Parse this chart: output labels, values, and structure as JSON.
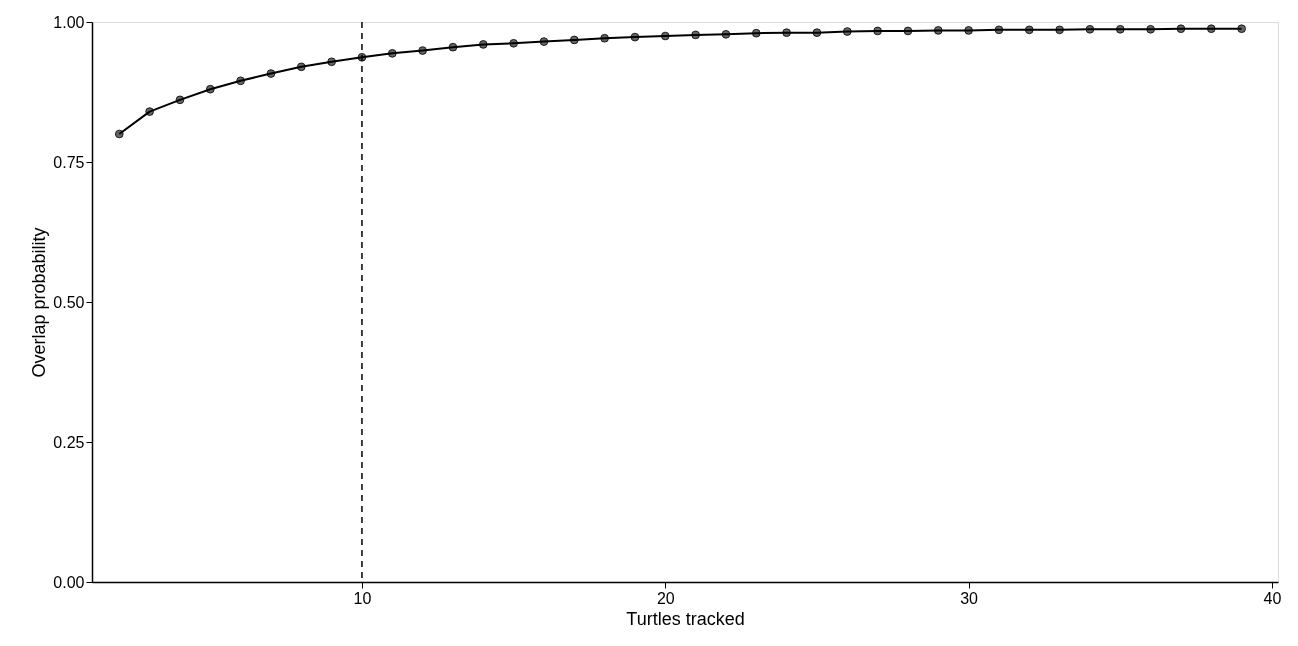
{
  "chart_data": {
    "type": "line",
    "xlabel": "Turtles tracked",
    "ylabel": "Overlap probability",
    "x": [
      2,
      3,
      4,
      5,
      6,
      7,
      8,
      9,
      10,
      11,
      12,
      13,
      14,
      15,
      16,
      17,
      18,
      19,
      20,
      21,
      22,
      23,
      24,
      25,
      26,
      27,
      28,
      29,
      30,
      31,
      32,
      33,
      34,
      35,
      36,
      37,
      38,
      39
    ],
    "series": [
      {
        "color": "#000000",
        "values": [
          0.8,
          0.84,
          0.861,
          0.88,
          0.895,
          0.908,
          0.92,
          0.929,
          0.937,
          0.944,
          0.949,
          0.955,
          0.96,
          0.962,
          0.965,
          0.968,
          0.971,
          0.973,
          0.975,
          0.977,
          0.978,
          0.98,
          0.981,
          0.981,
          0.983,
          0.984,
          0.984,
          0.985,
          0.985,
          0.986,
          0.986,
          0.986,
          0.987,
          0.987,
          0.987,
          0.988,
          0.988,
          0.988
        ]
      }
    ],
    "xlim": [
      1.1,
      40.2
    ],
    "xticks": [
      10,
      20,
      30,
      40
    ],
    "ylim": [
      0,
      1
    ],
    "yticks": [
      {
        "value": 0,
        "label": "0.00"
      },
      {
        "value": 0.25,
        "label": "0.25"
      },
      {
        "value": 0.5,
        "label": "0.50"
      },
      {
        "value": 0.75,
        "label": "0.75"
      },
      {
        "value": 1,
        "label": "1.00"
      }
    ],
    "ref_lines": [
      {
        "axis": "x",
        "value": 10,
        "label": null,
        "color": "#000000",
        "line_style": "dashed"
      }
    ],
    "marker": "circle",
    "line_style": "solid",
    "grid": false
  }
}
